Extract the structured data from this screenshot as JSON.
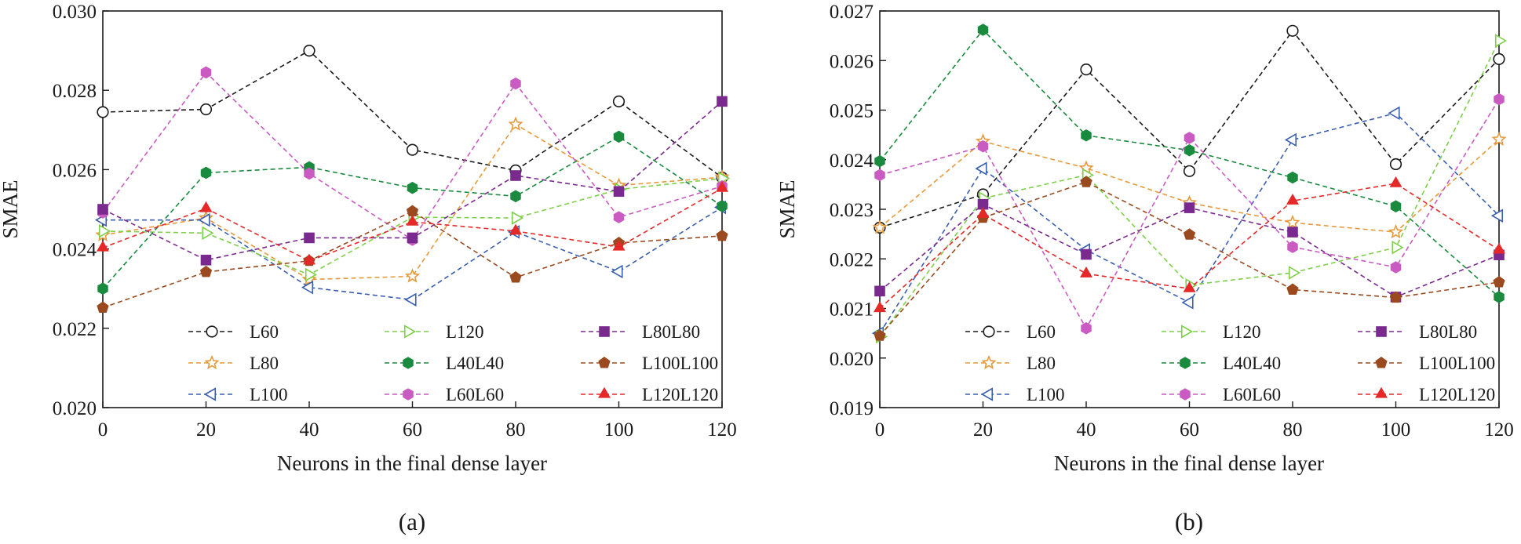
{
  "chart_data": [
    {
      "type": "line",
      "panel_label": "(a)",
      "xlabel": "Neurons in the final dense layer",
      "ylabel": "SMAE",
      "x": [
        0,
        20,
        40,
        60,
        80,
        100,
        120
      ],
      "x_ticks": [
        "0",
        "20",
        "40",
        "60",
        "80",
        "100",
        "120"
      ],
      "xlim": [
        0,
        120
      ],
      "ylim": [
        0.02,
        0.03
      ],
      "y_ticks": [
        0.02,
        0.022,
        0.024,
        0.026,
        0.028,
        0.03
      ],
      "y_tick_labels": [
        "0.020",
        "0.022",
        "0.024",
        "0.026",
        "0.028",
        "0.030"
      ],
      "legend_position": "lower-center",
      "series": [
        {
          "name": "L60",
          "color": "#1a1a1a",
          "marker": "circle-open",
          "values": [
            0.02745,
            0.02752,
            0.029,
            0.0265,
            0.02598,
            0.02772,
            0.0258
          ]
        },
        {
          "name": "L80",
          "color": "#e69a3c",
          "marker": "star-open",
          "values": [
            0.02435,
            0.02478,
            0.02323,
            0.02331,
            0.02714,
            0.0256,
            0.02581
          ]
        },
        {
          "name": "L100",
          "color": "#3a5fb0",
          "marker": "triangle-left-open",
          "values": [
            0.02473,
            0.02473,
            0.02303,
            0.02272,
            0.02443,
            0.02343,
            0.02505
          ]
        },
        {
          "name": "L120",
          "color": "#7ed04a",
          "marker": "triangle-right-open",
          "values": [
            0.02445,
            0.0244,
            0.02335,
            0.0248,
            0.02478,
            0.0255,
            0.02578
          ]
        },
        {
          "name": "L40L40",
          "color": "#1a8a3e",
          "marker": "hexagon",
          "values": [
            0.023,
            0.02592,
            0.02606,
            0.02554,
            0.02533,
            0.02683,
            0.02508
          ]
        },
        {
          "name": "L60L60",
          "color": "#c95bc2",
          "marker": "hexagon",
          "values": [
            0.02492,
            0.02845,
            0.0259,
            0.02423,
            0.02817,
            0.0248,
            0.02558
          ]
        },
        {
          "name": "L80L80",
          "color": "#7a2a8f",
          "marker": "square",
          "values": [
            0.025,
            0.02372,
            0.02428,
            0.02428,
            0.02585,
            0.02545,
            0.02772
          ]
        },
        {
          "name": "L100L100",
          "color": "#9a4a1e",
          "marker": "pentagon",
          "values": [
            0.02252,
            0.02342,
            0.0237,
            0.02495,
            0.02328,
            0.02415,
            0.02433
          ]
        },
        {
          "name": "L120L120",
          "color": "#e52828",
          "marker": "triangle-up",
          "values": [
            0.02403,
            0.02502,
            0.0237,
            0.02468,
            0.02445,
            0.02405,
            0.02553
          ]
        }
      ]
    },
    {
      "type": "line",
      "panel_label": "(b)",
      "xlabel": "Neurons in the final dense layer",
      "ylabel": "SMAE",
      "x": [
        0,
        20,
        40,
        60,
        80,
        100,
        120
      ],
      "x_ticks": [
        "0",
        "20",
        "40",
        "60",
        "80",
        "100",
        "120"
      ],
      "xlim": [
        0,
        120
      ],
      "ylim": [
        0.019,
        0.027
      ],
      "y_ticks": [
        0.019,
        0.02,
        0.021,
        0.022,
        0.023,
        0.024,
        0.025,
        0.026,
        0.027
      ],
      "y_tick_labels": [
        "0.019",
        "0.020",
        "0.021",
        "0.022",
        "0.023",
        "0.024",
        "0.025",
        "0.026",
        "0.027"
      ],
      "legend_position": "lower-center",
      "series": [
        {
          "name": "L60",
          "color": "#1a1a1a",
          "marker": "circle-open",
          "values": [
            0.02263,
            0.0233,
            0.02582,
            0.02377,
            0.0266,
            0.02391,
            0.02603
          ]
        },
        {
          "name": "L80",
          "color": "#e69a3c",
          "marker": "star-open",
          "values": [
            0.02263,
            0.02437,
            0.02383,
            0.02313,
            0.02273,
            0.02254,
            0.02441
          ]
        },
        {
          "name": "L100",
          "color": "#3a5fb0",
          "marker": "triangle-left-open",
          "values": [
            0.0205,
            0.02382,
            0.02218,
            0.02112,
            0.0244,
            0.02494,
            0.02287
          ]
        },
        {
          "name": "L120",
          "color": "#7ed04a",
          "marker": "triangle-right-open",
          "values": [
            0.02043,
            0.02322,
            0.02369,
            0.02147,
            0.02172,
            0.02223,
            0.0264
          ]
        },
        {
          "name": "L40L40",
          "color": "#1a8a3e",
          "marker": "hexagon",
          "values": [
            0.02397,
            0.02662,
            0.02449,
            0.02419,
            0.02364,
            0.02306,
            0.02123
          ]
        },
        {
          "name": "L60L60",
          "color": "#c95bc2",
          "marker": "hexagon",
          "values": [
            0.02369,
            0.02427,
            0.0206,
            0.02444,
            0.02224,
            0.02183,
            0.02522
          ]
        },
        {
          "name": "L80L80",
          "color": "#7a2a8f",
          "marker": "square",
          "values": [
            0.02135,
            0.0231,
            0.02209,
            0.02303,
            0.02254,
            0.02123,
            0.02208
          ]
        },
        {
          "name": "L100L100",
          "color": "#9a4a1e",
          "marker": "pentagon",
          "values": [
            0.02045,
            0.02283,
            0.02355,
            0.02249,
            0.02138,
            0.02122,
            0.02153
          ]
        },
        {
          "name": "L120L120",
          "color": "#e52828",
          "marker": "triangle-up",
          "values": [
            0.021,
            0.0229,
            0.0217,
            0.0214,
            0.02317,
            0.02352,
            0.02218
          ]
        }
      ]
    }
  ]
}
